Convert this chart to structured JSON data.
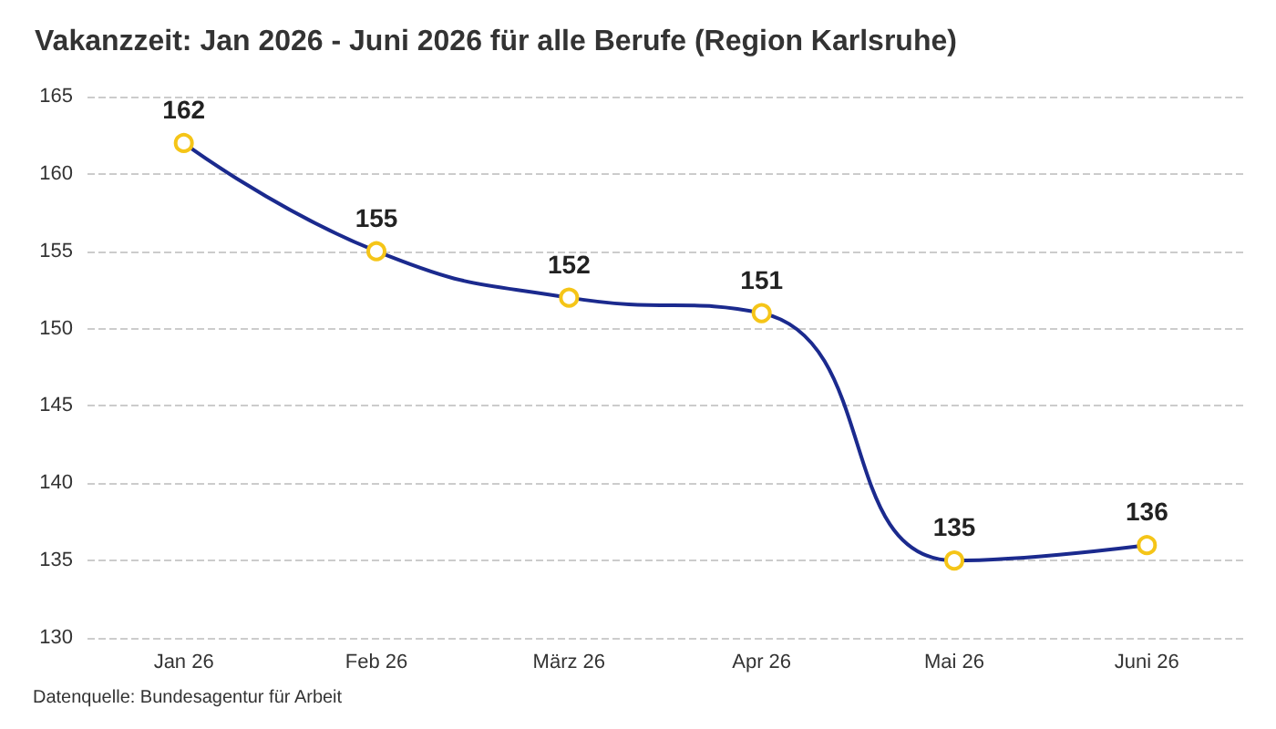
{
  "chart_data": {
    "type": "line",
    "title": "Vakanzzeit: Jan 2026 - Juni 2026 für alle Berufe (Region Karlsruhe)",
    "categories": [
      "Jan 26",
      "Feb 26",
      "März 26",
      "Apr 26",
      "Mai 26",
      "Juni 26"
    ],
    "series": [
      {
        "color": "#1b2a8e",
        "colors": [
          "#f5c518",
          "#f5c518",
          "#f5c518",
          "#f5c518",
          "#f5c518",
          "#f5c518"
        ],
        "values": [
          162,
          155,
          152,
          151,
          135,
          136
        ]
      }
    ],
    "ylim": [
      130,
      165
    ],
    "yticks": [
      130,
      135,
      140,
      145,
      150,
      155,
      160,
      165
    ],
    "grid": "y",
    "marker": "circle",
    "line_style": "solid",
    "data_labels": true,
    "annotations": [
      "Datenquelle: Bundesagentur für Arbeit"
    ]
  }
}
